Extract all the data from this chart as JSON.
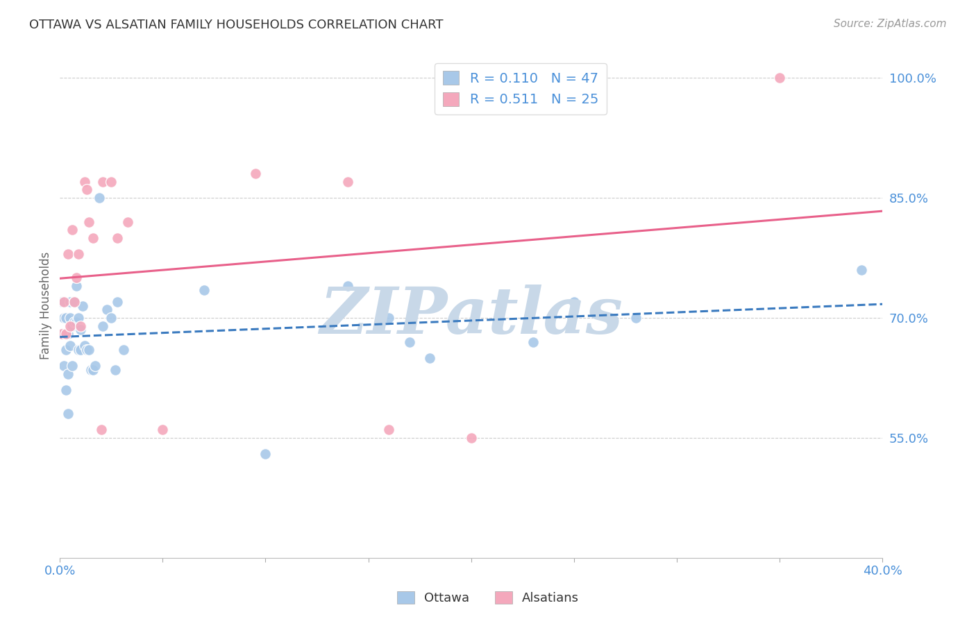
{
  "title": "OTTAWA VS ALSATIAN FAMILY HOUSEHOLDS CORRELATION CHART",
  "source": "Source: ZipAtlas.com",
  "ylabel": "Family Households",
  "watermark": "ZIPatlas",
  "xlim": [
    0.0,
    0.4
  ],
  "ylim": [
    0.4,
    1.03
  ],
  "legend_ottawa_R": "0.110",
  "legend_ottawa_N": "47",
  "legend_alsatian_R": "0.511",
  "legend_alsatian_N": "25",
  "ottawa_color": "#a8c8e8",
  "alsatian_color": "#f4a8bc",
  "ottawa_line_color": "#3a7abf",
  "alsatian_line_color": "#e8608a",
  "ottawa_x": [
    0.001,
    0.001,
    0.002,
    0.002,
    0.003,
    0.003,
    0.003,
    0.004,
    0.004,
    0.004,
    0.005,
    0.005,
    0.005,
    0.006,
    0.006,
    0.007,
    0.007,
    0.008,
    0.008,
    0.009,
    0.009,
    0.01,
    0.01,
    0.011,
    0.012,
    0.013,
    0.014,
    0.015,
    0.016,
    0.017,
    0.019,
    0.021,
    0.023,
    0.025,
    0.027,
    0.028,
    0.031,
    0.07,
    0.1,
    0.14,
    0.16,
    0.17,
    0.18,
    0.23,
    0.25,
    0.28,
    0.39
  ],
  "ottawa_y": [
    0.68,
    0.72,
    0.64,
    0.7,
    0.61,
    0.66,
    0.7,
    0.58,
    0.63,
    0.68,
    0.665,
    0.7,
    0.72,
    0.64,
    0.69,
    0.695,
    0.72,
    0.74,
    0.695,
    0.66,
    0.7,
    0.66,
    0.685,
    0.715,
    0.665,
    0.66,
    0.66,
    0.635,
    0.635,
    0.64,
    0.85,
    0.69,
    0.71,
    0.7,
    0.635,
    0.72,
    0.66,
    0.735,
    0.53,
    0.74,
    0.7,
    0.67,
    0.65,
    0.67,
    0.72,
    0.7,
    0.76
  ],
  "alsatian_x": [
    0.001,
    0.002,
    0.003,
    0.004,
    0.005,
    0.006,
    0.007,
    0.008,
    0.009,
    0.01,
    0.012,
    0.013,
    0.014,
    0.016,
    0.02,
    0.021,
    0.025,
    0.028,
    0.033,
    0.05,
    0.095,
    0.14,
    0.16,
    0.2,
    0.35
  ],
  "alsatian_y": [
    0.68,
    0.72,
    0.68,
    0.78,
    0.69,
    0.81,
    0.72,
    0.75,
    0.78,
    0.69,
    0.87,
    0.86,
    0.82,
    0.8,
    0.56,
    0.87,
    0.87,
    0.8,
    0.82,
    0.56,
    0.88,
    0.87,
    0.56,
    0.55,
    1.0
  ],
  "background_color": "#ffffff",
  "grid_color": "#cccccc",
  "title_color": "#333333",
  "axis_color": "#4a90d9",
  "watermark_color": "#c8d8e8",
  "yticks": [
    0.55,
    0.7,
    0.85,
    1.0
  ],
  "ytick_labels": [
    "55.0%",
    "70.0%",
    "85.0%",
    "100.0%"
  ],
  "xtick_positions": [
    0.0,
    0.4
  ],
  "xtick_labels": [
    "0.0%",
    "40.0%"
  ]
}
